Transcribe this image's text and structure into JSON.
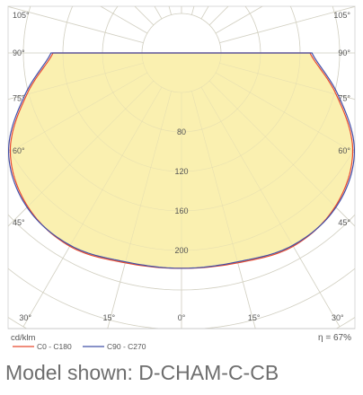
{
  "chart_data": {
    "type": "polar",
    "unit_label": "cd/klm",
    "efficiency": "η = 67%",
    "radial_ticks": [
      "80",
      "120",
      "160",
      "200"
    ],
    "radial_values": [
      80,
      120,
      160,
      200
    ],
    "rmax": 240,
    "angle_labels": [
      {
        "text": "105°",
        "angle": 105,
        "side": "left"
      },
      {
        "text": "105°",
        "angle": 105,
        "side": "right"
      },
      {
        "text": "90°",
        "angle": 90,
        "side": "left"
      },
      {
        "text": "90°",
        "angle": 90,
        "side": "right"
      },
      {
        "text": "75°",
        "angle": 75,
        "side": "left"
      },
      {
        "text": "75°",
        "angle": 75,
        "side": "right"
      },
      {
        "text": "60°",
        "angle": 60,
        "side": "left"
      },
      {
        "text": "60°",
        "angle": 60,
        "side": "right"
      },
      {
        "text": "45°",
        "angle": 45,
        "side": "left"
      },
      {
        "text": "45°",
        "angle": 45,
        "side": "right"
      }
    ],
    "bottom_labels": [
      {
        "text": "30°",
        "angle": 30,
        "side": "left"
      },
      {
        "text": "15°",
        "angle": 15,
        "side": "left"
      },
      {
        "text": "0°",
        "angle": 0,
        "side": "center"
      },
      {
        "text": "15°",
        "angle": 15,
        "side": "right"
      },
      {
        "text": "30°",
        "angle": 30,
        "side": "right"
      }
    ],
    "series": [
      {
        "name": "C0 - C180",
        "color": "#e8492e",
        "angles": [
          0,
          15,
          30,
          45,
          60,
          75,
          90
        ],
        "values": [
          218,
          220,
          226,
          220,
          200,
          162,
          130
        ]
      },
      {
        "name": "C90 - C270",
        "color": "#4250a8",
        "angles": [
          0,
          15,
          30,
          45,
          60,
          75,
          90
        ],
        "values": [
          218,
          219,
          225,
          221,
          202,
          164,
          132
        ]
      }
    ],
    "fill_color": "#faf0b0",
    "grid": true
  },
  "caption": "Model shown: D-CHAM-C-CB"
}
